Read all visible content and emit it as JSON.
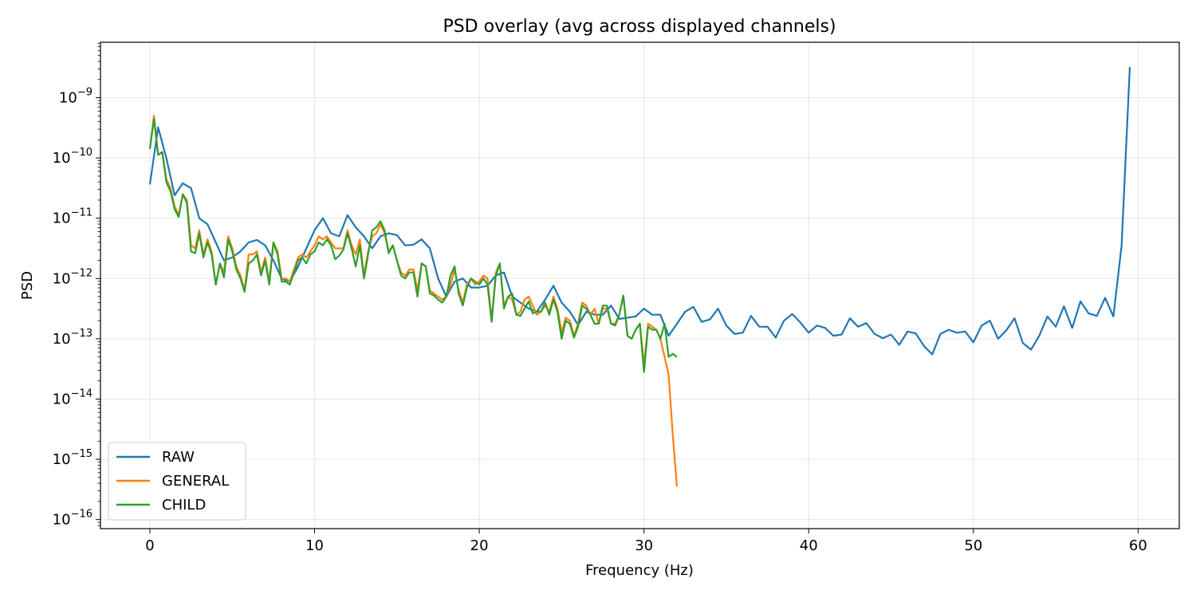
{
  "chart_data": {
    "type": "line",
    "title": "PSD overlay (avg across displayed channels)",
    "xlabel": "Frequency (Hz)",
    "ylabel": "PSD",
    "x_scale": "linear",
    "y_scale": "log",
    "xlim": [
      -3,
      62.5
    ],
    "ylim_log10": [
      -16.15,
      -8.08
    ],
    "x_ticks": [
      {
        "value": 0,
        "label": "0"
      },
      {
        "value": 10,
        "label": "10"
      },
      {
        "value": 20,
        "label": "20"
      },
      {
        "value": 30,
        "label": "30"
      },
      {
        "value": 40,
        "label": "40"
      },
      {
        "value": 50,
        "label": "50"
      },
      {
        "value": 60,
        "label": "60"
      }
    ],
    "y_ticks": [
      {
        "exp": -9,
        "base": "10",
        "sup": "−9"
      },
      {
        "exp": -10,
        "base": "10",
        "sup": "−10"
      },
      {
        "exp": -11,
        "base": "10",
        "sup": "−11"
      },
      {
        "exp": -12,
        "base": "10",
        "sup": "−12"
      },
      {
        "exp": -13,
        "base": "10",
        "sup": "−13"
      },
      {
        "exp": -14,
        "base": "10",
        "sup": "−14"
      },
      {
        "exp": -15,
        "base": "10",
        "sup": "−15"
      },
      {
        "exp": -16,
        "base": "10",
        "sup": "−16"
      }
    ],
    "grid": true,
    "legend_position": "lower-left",
    "series": [
      {
        "name": "RAW",
        "color": "#1f77b4",
        "x": [
          0,
          0.5,
          1,
          1.5,
          2,
          2.5,
          3,
          3.5,
          4,
          4.5,
          5,
          5.5,
          6,
          6.5,
          7,
          7.5,
          8,
          8.5,
          9,
          9.5,
          10,
          10.5,
          11,
          11.5,
          12,
          12.5,
          13,
          13.5,
          14,
          14.5,
          15,
          15.5,
          16,
          16.5,
          17,
          17.5,
          18,
          18.5,
          19,
          19.5,
          20,
          20.5,
          21,
          21.5,
          22,
          22.5,
          23,
          23.5,
          24,
          24.5,
          25,
          25.5,
          26,
          26.5,
          27,
          27.5,
          28,
          28.5,
          29,
          29.5,
          30,
          30.5,
          31,
          31.5,
          32,
          32.5,
          33,
          33.5,
          34,
          34.5,
          35,
          35.5,
          36,
          36.5,
          37,
          37.5,
          38,
          38.5,
          39,
          39.5,
          40,
          40.5,
          41,
          41.5,
          42,
          42.5,
          43,
          43.5,
          44,
          44.5,
          45,
          45.5,
          46,
          46.5,
          47,
          47.5,
          48,
          48.5,
          49,
          49.5,
          50,
          50.5,
          51,
          51.5,
          52,
          52.5,
          53,
          53.5,
          54,
          54.5,
          55,
          55.5,
          56,
          56.5,
          57,
          57.5,
          58,
          58.5,
          59,
          59.5
        ],
        "log10_y": [
          -10.44,
          -9.49,
          -10.0,
          -10.62,
          -10.42,
          -10.5,
          -11.0,
          -11.1,
          -11.4,
          -11.7,
          -11.65,
          -11.55,
          -11.4,
          -11.36,
          -11.45,
          -11.7,
          -12.0,
          -12.05,
          -11.8,
          -11.5,
          -11.2,
          -11.0,
          -11.25,
          -11.3,
          -10.95,
          -11.15,
          -11.3,
          -11.5,
          -11.3,
          -11.25,
          -11.28,
          -11.45,
          -11.44,
          -11.35,
          -11.5,
          -12.0,
          -12.3,
          -12.05,
          -12.0,
          -12.15,
          -12.15,
          -12.12,
          -11.95,
          -11.9,
          -12.3,
          -12.4,
          -12.5,
          -12.55,
          -12.35,
          -12.12,
          -12.4,
          -12.55,
          -12.77,
          -12.55,
          -12.6,
          -12.6,
          -12.45,
          -12.67,
          -12.65,
          -12.63,
          -12.5,
          -12.6,
          -12.6,
          -12.95,
          -12.75,
          -12.55,
          -12.47,
          -12.72,
          -12.68,
          -12.5,
          -12.78,
          -12.92,
          -12.9,
          -12.62,
          -12.8,
          -12.8,
          -12.98,
          -12.7,
          -12.59,
          -12.73,
          -12.9,
          -12.78,
          -12.82,
          -12.95,
          -12.93,
          -12.66,
          -12.8,
          -12.74,
          -12.92,
          -12.99,
          -12.93,
          -13.1,
          -12.88,
          -12.91,
          -13.12,
          -13.26,
          -12.92,
          -12.85,
          -12.9,
          -12.88,
          -13.06,
          -12.78,
          -12.7,
          -13.0,
          -12.86,
          -12.66,
          -13.07,
          -13.18,
          -12.95,
          -12.63,
          -12.8,
          -12.46,
          -12.82,
          -12.38,
          -12.58,
          -12.62,
          -12.32,
          -12.63,
          -11.45,
          -8.49
        ]
      },
      {
        "name": "GENERAL",
        "color": "#ff7f0e",
        "x": [
          0,
          0.25,
          0.5,
          0.75,
          1,
          1.25,
          1.5,
          1.75,
          2,
          2.25,
          2.5,
          2.75,
          3,
          3.25,
          3.5,
          3.75,
          4,
          4.25,
          4.5,
          4.75,
          5,
          5.25,
          5.5,
          5.75,
          6,
          6.25,
          6.5,
          6.75,
          7,
          7.25,
          7.5,
          7.75,
          8,
          8.25,
          8.5,
          8.75,
          9,
          9.25,
          9.5,
          9.75,
          10,
          10.25,
          10.5,
          10.75,
          11,
          11.25,
          11.5,
          11.75,
          12,
          12.25,
          12.5,
          12.75,
          13,
          13.25,
          13.5,
          13.75,
          14,
          14.25,
          14.5,
          14.75,
          15,
          15.25,
          15.5,
          15.75,
          16,
          16.25,
          16.5,
          16.75,
          17,
          17.25,
          17.5,
          17.75,
          18,
          18.25,
          18.5,
          18.75,
          19,
          19.25,
          19.5,
          19.75,
          20,
          20.25,
          20.5,
          20.75,
          21,
          21.25,
          21.5,
          21.75,
          22,
          22.25,
          22.5,
          22.75,
          23,
          23.25,
          23.5,
          23.75,
          24,
          24.25,
          24.5,
          24.75,
          25,
          25.25,
          25.5,
          25.75,
          26,
          26.25,
          26.5,
          26.75,
          27,
          27.25,
          27.5,
          27.75,
          28,
          28.25,
          28.5,
          28.75,
          29,
          29.25,
          29.5,
          29.75,
          30,
          30.25,
          30.5,
          30.75,
          31,
          31.25,
          31.5,
          31.75,
          32
        ],
        "log10_y": [
          -9.85,
          -9.3,
          -9.95,
          -9.9,
          -10.35,
          -10.5,
          -10.8,
          -10.95,
          -10.6,
          -10.7,
          -11.45,
          -11.5,
          -11.2,
          -11.6,
          -11.35,
          -11.55,
          -12.1,
          -11.75,
          -11.9,
          -11.3,
          -11.5,
          -11.8,
          -11.95,
          -12.2,
          -11.6,
          -11.6,
          -11.55,
          -11.9,
          -11.65,
          -12.05,
          -11.4,
          -11.55,
          -12.0,
          -12.0,
          -12.05,
          -11.85,
          -11.65,
          -11.6,
          -11.65,
          -11.55,
          -11.45,
          -11.3,
          -11.35,
          -11.3,
          -11.4,
          -11.5,
          -11.5,
          -11.5,
          -11.2,
          -11.45,
          -11.6,
          -11.35,
          -11.95,
          -11.55,
          -11.3,
          -11.25,
          -11.1,
          -11.25,
          -11.55,
          -11.45,
          -11.7,
          -11.9,
          -11.95,
          -11.85,
          -11.85,
          -12.2,
          -11.75,
          -11.8,
          -12.2,
          -12.25,
          -12.3,
          -12.35,
          -12.3,
          -12.1,
          -11.85,
          -12.2,
          -12.4,
          -12.1,
          -12.0,
          -12.1,
          -12.05,
          -11.95,
          -12.0,
          -12.7,
          -11.9,
          -11.75,
          -12.45,
          -12.3,
          -12.35,
          -12.6,
          -12.55,
          -12.35,
          -12.3,
          -12.45,
          -12.6,
          -12.55,
          -12.45,
          -12.55,
          -12.3,
          -12.5,
          -12.9,
          -12.65,
          -12.7,
          -12.95,
          -12.75,
          -12.4,
          -12.45,
          -12.6,
          -12.5,
          -12.75,
          -12.5,
          -12.5,
          -12.75,
          -12.75,
          -12.6,
          -12.3,
          -12.95,
          -13.0,
          -12.85,
          -12.75,
          -13.45,
          -12.75,
          -12.8,
          -12.85,
          -13.0,
          -13.3,
          -13.6,
          -14.6,
          -15.45,
          -15.82
        ]
      },
      {
        "name": "CHILD",
        "color": "#2ca02c",
        "x": [
          0,
          0.25,
          0.5,
          0.75,
          1,
          1.25,
          1.5,
          1.75,
          2,
          2.25,
          2.5,
          2.75,
          3,
          3.25,
          3.5,
          3.75,
          4,
          4.25,
          4.5,
          4.75,
          5,
          5.25,
          5.5,
          5.75,
          6,
          6.25,
          6.5,
          6.75,
          7,
          7.25,
          7.5,
          7.75,
          8,
          8.25,
          8.5,
          8.75,
          9,
          9.25,
          9.5,
          9.75,
          10,
          10.25,
          10.5,
          10.75,
          11,
          11.25,
          11.5,
          11.75,
          12,
          12.25,
          12.5,
          12.75,
          13,
          13.25,
          13.5,
          13.75,
          14,
          14.25,
          14.5,
          14.75,
          15,
          15.25,
          15.5,
          15.75,
          16,
          16.25,
          16.5,
          16.75,
          17,
          17.25,
          17.5,
          17.75,
          18,
          18.25,
          18.5,
          18.75,
          19,
          19.25,
          19.5,
          19.75,
          20,
          20.25,
          20.5,
          20.75,
          21,
          21.25,
          21.5,
          21.75,
          22,
          22.25,
          22.5,
          22.75,
          23,
          23.25,
          23.5,
          23.75,
          24,
          24.25,
          24.5,
          24.75,
          25,
          25.25,
          25.5,
          25.75,
          26,
          26.25,
          26.5,
          26.75,
          27,
          27.25,
          27.5,
          27.75,
          28,
          28.25,
          28.5,
          28.75,
          29,
          29.25,
          29.5,
          29.75,
          30,
          30.25,
          30.5,
          30.75,
          31,
          31.25,
          31.5,
          31.75,
          32
        ],
        "log10_y": [
          -9.85,
          -9.35,
          -9.95,
          -9.9,
          -10.4,
          -10.55,
          -10.85,
          -10.98,
          -10.6,
          -10.75,
          -11.55,
          -11.58,
          -11.25,
          -11.65,
          -11.4,
          -11.6,
          -12.1,
          -11.75,
          -11.98,
          -11.35,
          -11.55,
          -11.85,
          -12.0,
          -12.22,
          -11.75,
          -11.7,
          -11.6,
          -11.95,
          -11.7,
          -12.1,
          -11.4,
          -11.6,
          -12.05,
          -12.05,
          -12.1,
          -11.9,
          -11.7,
          -11.65,
          -11.75,
          -11.6,
          -11.55,
          -11.4,
          -11.45,
          -11.35,
          -11.45,
          -11.68,
          -11.62,
          -11.52,
          -11.25,
          -11.5,
          -11.8,
          -11.45,
          -12.0,
          -11.6,
          -11.2,
          -11.15,
          -11.05,
          -11.2,
          -11.58,
          -11.45,
          -11.7,
          -11.95,
          -12.0,
          -11.9,
          -11.9,
          -12.3,
          -11.75,
          -11.8,
          -12.25,
          -12.28,
          -12.35,
          -12.4,
          -12.3,
          -11.95,
          -11.8,
          -12.25,
          -12.45,
          -12.15,
          -12.0,
          -12.05,
          -12.1,
          -12.0,
          -12.1,
          -12.72,
          -11.95,
          -11.75,
          -12.5,
          -12.3,
          -12.25,
          -12.6,
          -12.62,
          -12.5,
          -12.38,
          -12.58,
          -12.55,
          -12.55,
          -12.4,
          -12.6,
          -12.35,
          -12.55,
          -13.0,
          -12.7,
          -12.75,
          -12.98,
          -12.8,
          -12.45,
          -12.5,
          -12.6,
          -12.75,
          -12.75,
          -12.45,
          -12.45,
          -12.75,
          -12.78,
          -12.6,
          -12.28,
          -12.95,
          -13.0,
          -12.85,
          -12.75,
          -13.55,
          -12.8,
          -12.85,
          -12.85,
          -13.0,
          -12.75,
          -13.3,
          -13.25,
          -13.3
        ]
      }
    ]
  }
}
